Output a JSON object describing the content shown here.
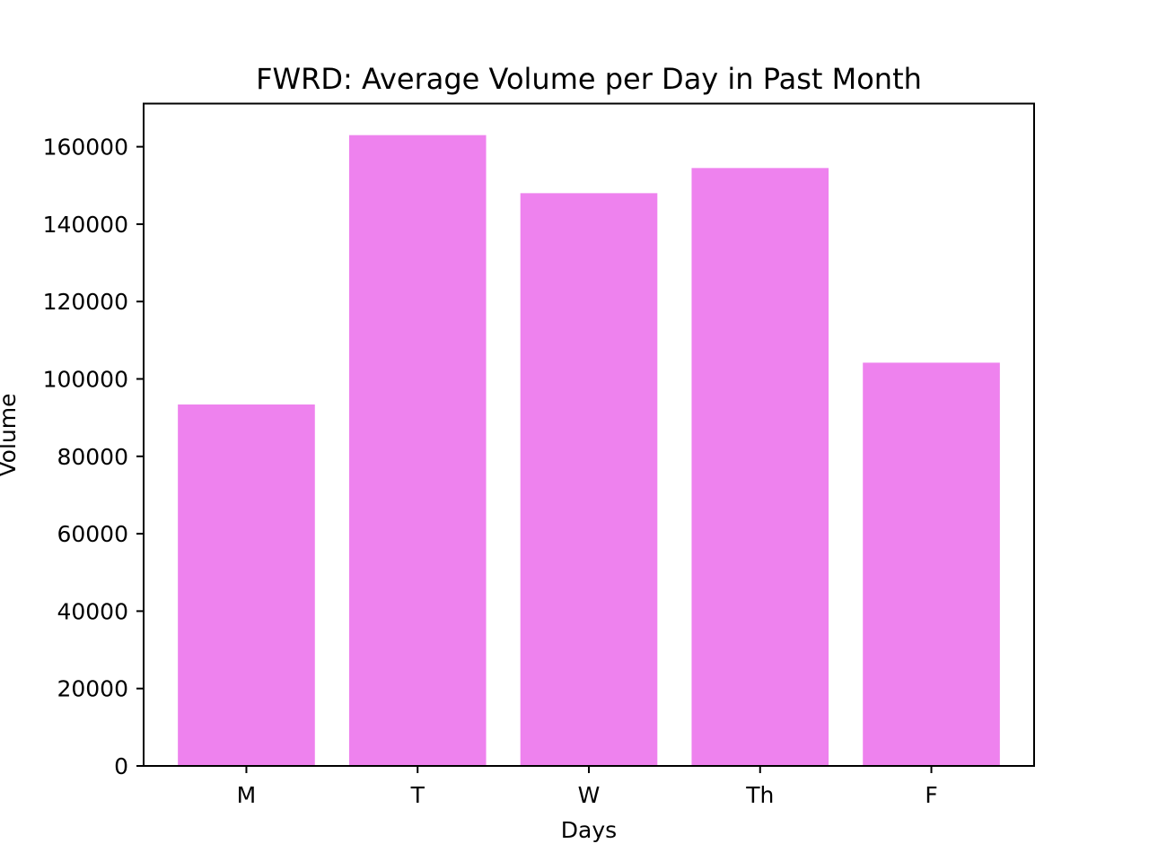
{
  "chart_data": {
    "type": "bar",
    "title": "FWRD: Average Volume per Day in Past Month",
    "xlabel": "Days",
    "ylabel": "Volume",
    "categories": [
      "M",
      "T",
      "W",
      "Th",
      "F"
    ],
    "values": [
      93400,
      163000,
      148000,
      154500,
      104200
    ],
    "ylim": [
      0,
      171150
    ],
    "yticks": [
      0,
      20000,
      40000,
      60000,
      80000,
      100000,
      120000,
      140000,
      160000
    ],
    "ytick_labels": [
      "0",
      "20000",
      "40000",
      "60000",
      "80000",
      "100000",
      "120000",
      "140000",
      "160000"
    ],
    "grid": false,
    "legend": "none",
    "bar_color": "#ee82ee"
  }
}
